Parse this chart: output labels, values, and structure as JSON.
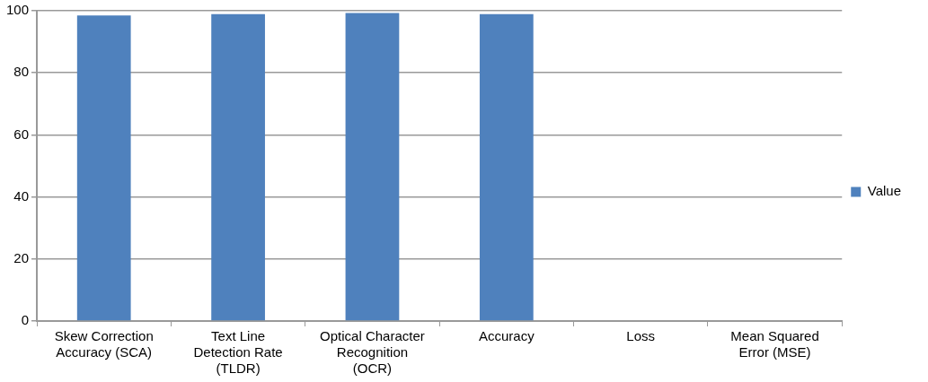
{
  "chart_data": {
    "type": "bar",
    "categories": [
      "Skew Correction Accuracy (SCA)",
      "Text Line Detection Rate (TLDR)",
      "Optical Character Recognition (OCR)",
      "Accuracy",
      "Loss",
      "Mean Squared Error (MSE)"
    ],
    "series": [
      {
        "name": "Value",
        "color": "#4f81bd",
        "values": [
          98.5,
          98.9,
          99.3,
          98.9,
          0,
          0
        ]
      }
    ],
    "ylim": [
      0,
      100
    ],
    "yticks": [
      0,
      20,
      40,
      60,
      80,
      100
    ],
    "grid": "y",
    "legend": "right"
  }
}
